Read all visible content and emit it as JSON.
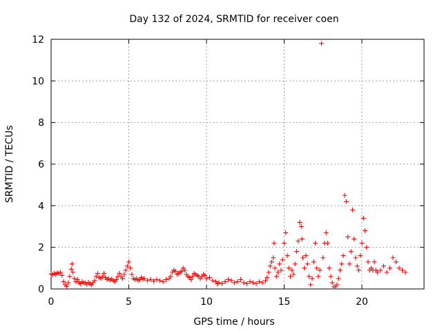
{
  "chart_data": {
    "type": "scatter",
    "title": "Day 132 of 2024, SRMTID for receiver coen",
    "xlabel": "GPS time / hours",
    "ylabel": "SRMTID / TECUs",
    "xlim": [
      0,
      24
    ],
    "ylim": [
      0,
      12
    ],
    "xticks": [
      "0",
      "5",
      "10",
      "15",
      "20"
    ],
    "yticks": [
      "0",
      "2",
      "4",
      "6",
      "8",
      "10",
      "12"
    ],
    "grid": true,
    "marker": "+",
    "marker_color": "#ff0000",
    "series": [
      {
        "values": [
          [
            0.0,
            0.72
          ],
          [
            0.1,
            0.68
          ],
          [
            0.2,
            0.75
          ],
          [
            0.3,
            0.7
          ],
          [
            0.4,
            0.78
          ],
          [
            0.5,
            0.74
          ],
          [
            0.6,
            0.8
          ],
          [
            0.7,
            0.65
          ],
          [
            0.8,
            0.35
          ],
          [
            0.9,
            0.2
          ],
          [
            1.0,
            0.12
          ],
          [
            1.1,
            0.3
          ],
          [
            1.2,
            0.6
          ],
          [
            1.3,
            0.95
          ],
          [
            1.35,
            1.2
          ],
          [
            1.4,
            0.8
          ],
          [
            1.5,
            0.5
          ],
          [
            1.6,
            0.35
          ],
          [
            1.7,
            0.45
          ],
          [
            1.8,
            0.3
          ],
          [
            1.9,
            0.25
          ],
          [
            2.0,
            0.35
          ],
          [
            2.1,
            0.28
          ],
          [
            2.2,
            0.3
          ],
          [
            2.3,
            0.22
          ],
          [
            2.4,
            0.32
          ],
          [
            2.5,
            0.25
          ],
          [
            2.6,
            0.2
          ],
          [
            2.7,
            0.3
          ],
          [
            2.8,
            0.4
          ],
          [
            2.9,
            0.6
          ],
          [
            3.0,
            0.75
          ],
          [
            3.1,
            0.55
          ],
          [
            3.2,
            0.5
          ],
          [
            3.3,
            0.6
          ],
          [
            3.4,
            0.75
          ],
          [
            3.5,
            0.55
          ],
          [
            3.6,
            0.45
          ],
          [
            3.7,
            0.5
          ],
          [
            3.8,
            0.42
          ],
          [
            3.9,
            0.48
          ],
          [
            4.0,
            0.4
          ],
          [
            4.1,
            0.35
          ],
          [
            4.2,
            0.45
          ],
          [
            4.3,
            0.6
          ],
          [
            4.4,
            0.75
          ],
          [
            4.5,
            0.6
          ],
          [
            4.6,
            0.5
          ],
          [
            4.7,
            0.7
          ],
          [
            4.8,
            0.9
          ],
          [
            4.9,
            1.1
          ],
          [
            5.0,
            1.3
          ],
          [
            5.1,
            1.0
          ],
          [
            5.2,
            0.7
          ],
          [
            5.3,
            0.5
          ],
          [
            5.4,
            0.45
          ],
          [
            5.5,
            0.5
          ],
          [
            5.6,
            0.4
          ],
          [
            5.7,
            0.45
          ],
          [
            5.8,
            0.55
          ],
          [
            5.9,
            0.48
          ],
          [
            6.0,
            0.5
          ],
          [
            6.2,
            0.4
          ],
          [
            6.4,
            0.45
          ],
          [
            6.6,
            0.38
          ],
          [
            6.8,
            0.45
          ],
          [
            7.0,
            0.4
          ],
          [
            7.2,
            0.35
          ],
          [
            7.4,
            0.45
          ],
          [
            7.6,
            0.5
          ],
          [
            7.7,
            0.6
          ],
          [
            7.8,
            0.8
          ],
          [
            7.9,
            0.9
          ],
          [
            8.0,
            0.85
          ],
          [
            8.1,
            0.7
          ],
          [
            8.2,
            0.75
          ],
          [
            8.3,
            0.8
          ],
          [
            8.4,
            0.85
          ],
          [
            8.5,
            1.0
          ],
          [
            8.6,
            0.9
          ],
          [
            8.7,
            0.7
          ],
          [
            8.8,
            0.6
          ],
          [
            8.9,
            0.55
          ],
          [
            9.0,
            0.45
          ],
          [
            9.1,
            0.6
          ],
          [
            9.2,
            0.75
          ],
          [
            9.3,
            0.7
          ],
          [
            9.4,
            0.65
          ],
          [
            9.5,
            0.6
          ],
          [
            9.6,
            0.5
          ],
          [
            9.7,
            0.6
          ],
          [
            9.8,
            0.7
          ],
          [
            9.9,
            0.65
          ],
          [
            10.0,
            0.5
          ],
          [
            10.2,
            0.55
          ],
          [
            10.4,
            0.4
          ],
          [
            10.6,
            0.35
          ],
          [
            10.7,
            0.25
          ],
          [
            10.8,
            0.3
          ],
          [
            11.0,
            0.25
          ],
          [
            11.2,
            0.35
          ],
          [
            11.4,
            0.45
          ],
          [
            11.6,
            0.4
          ],
          [
            11.8,
            0.3
          ],
          [
            12.0,
            0.35
          ],
          [
            12.2,
            0.45
          ],
          [
            12.4,
            0.3
          ],
          [
            12.6,
            0.25
          ],
          [
            12.8,
            0.35
          ],
          [
            13.0,
            0.3
          ],
          [
            13.2,
            0.25
          ],
          [
            13.4,
            0.35
          ],
          [
            13.6,
            0.3
          ],
          [
            13.8,
            0.4
          ],
          [
            13.9,
            0.55
          ],
          [
            14.0,
            0.8
          ],
          [
            14.1,
            1.1
          ],
          [
            14.2,
            1.3
          ],
          [
            14.3,
            1.5
          ],
          [
            14.35,
            2.2
          ],
          [
            14.4,
            1.0
          ],
          [
            14.5,
            0.6
          ],
          [
            14.6,
            0.8
          ],
          [
            14.7,
            1.2
          ],
          [
            14.8,
            0.9
          ],
          [
            14.9,
            1.4
          ],
          [
            15.0,
            2.2
          ],
          [
            15.1,
            2.7
          ],
          [
            15.2,
            1.6
          ],
          [
            15.3,
            1.0
          ],
          [
            15.4,
            0.6
          ],
          [
            15.5,
            0.9
          ],
          [
            15.6,
            0.7
          ],
          [
            15.7,
            1.2
          ],
          [
            15.8,
            1.8
          ],
          [
            15.9,
            2.3
          ],
          [
            16.0,
            3.2
          ],
          [
            16.1,
            3.0
          ],
          [
            16.15,
            2.4
          ],
          [
            16.2,
            1.5
          ],
          [
            16.3,
            1.0
          ],
          [
            16.4,
            1.6
          ],
          [
            16.5,
            1.2
          ],
          [
            16.6,
            0.6
          ],
          [
            16.7,
            0.2
          ],
          [
            16.8,
            0.5
          ],
          [
            16.9,
            1.3
          ],
          [
            17.0,
            2.2
          ],
          [
            17.1,
            1.0
          ],
          [
            17.2,
            0.6
          ],
          [
            17.3,
            0.9
          ],
          [
            17.4,
            11.8
          ],
          [
            17.5,
            1.5
          ],
          [
            17.6,
            2.2
          ],
          [
            17.7,
            2.7
          ],
          [
            17.8,
            2.2
          ],
          [
            17.9,
            1.0
          ],
          [
            18.0,
            0.6
          ],
          [
            18.1,
            0.3
          ],
          [
            18.2,
            0.1
          ],
          [
            18.3,
            0.1
          ],
          [
            18.4,
            0.2
          ],
          [
            18.5,
            0.5
          ],
          [
            18.6,
            0.9
          ],
          [
            18.7,
            1.2
          ],
          [
            18.8,
            1.6
          ],
          [
            18.9,
            4.5
          ],
          [
            19.0,
            4.2
          ],
          [
            19.1,
            2.5
          ],
          [
            19.2,
            1.2
          ],
          [
            19.3,
            1.8
          ],
          [
            19.4,
            3.8
          ],
          [
            19.5,
            2.4
          ],
          [
            19.6,
            1.5
          ],
          [
            19.7,
            1.1
          ],
          [
            19.8,
            0.9
          ],
          [
            19.9,
            1.6
          ],
          [
            20.0,
            2.2
          ],
          [
            20.1,
            3.4
          ],
          [
            20.2,
            2.8
          ],
          [
            20.3,
            2.0
          ],
          [
            20.4,
            1.3
          ],
          [
            20.5,
            0.9
          ],
          [
            20.6,
            1.0
          ],
          [
            20.7,
            0.9
          ],
          [
            20.8,
            1.3
          ],
          [
            20.9,
            0.9
          ],
          [
            21.0,
            0.8
          ],
          [
            21.2,
            0.9
          ],
          [
            21.4,
            1.1
          ],
          [
            21.6,
            0.8
          ],
          [
            21.8,
            1.0
          ],
          [
            22.0,
            1.5
          ],
          [
            22.2,
            1.3
          ],
          [
            22.4,
            1.0
          ],
          [
            22.6,
            0.9
          ],
          [
            22.8,
            0.8
          ]
        ]
      }
    ]
  }
}
